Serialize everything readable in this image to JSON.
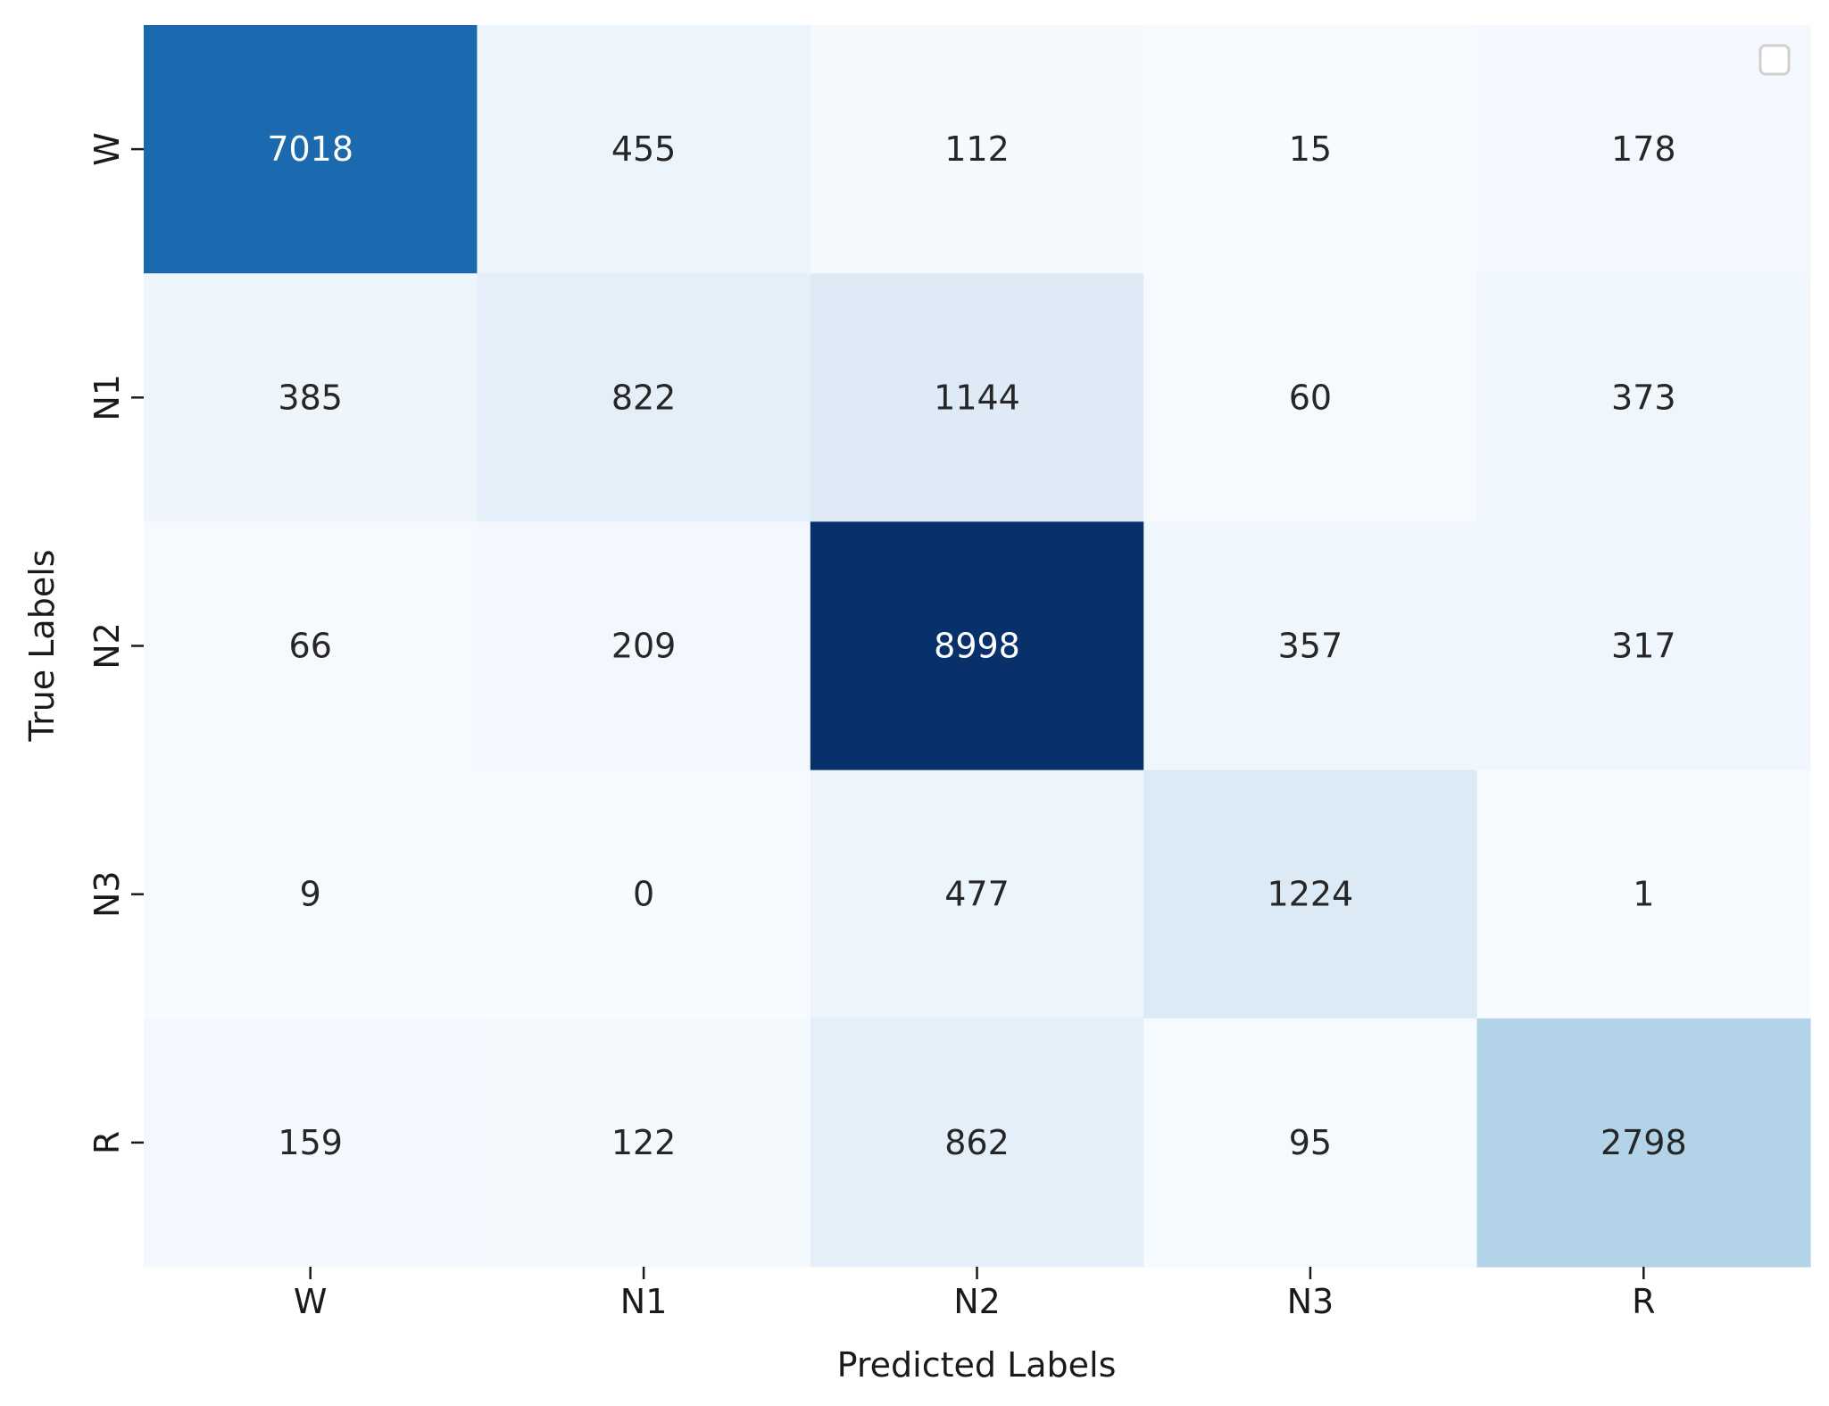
{
  "chart_data": {
    "type": "heatmap",
    "title": "",
    "xlabel": "Predicted Labels",
    "ylabel": "True Labels",
    "x_categories": [
      "W",
      "N1",
      "N2",
      "N3",
      "R"
    ],
    "y_categories": [
      "W",
      "N1",
      "N2",
      "N3",
      "R"
    ],
    "values": [
      [
        7018,
        455,
        112,
        15,
        178
      ],
      [
        385,
        822,
        1144,
        60,
        373
      ],
      [
        66,
        209,
        8998,
        357,
        317
      ],
      [
        9,
        0,
        477,
        1224,
        1
      ],
      [
        159,
        122,
        862,
        95,
        2798
      ]
    ],
    "value_range": [
      0,
      8998
    ],
    "colormap": "Blues",
    "colorbar": false,
    "legend": "empty box, top-right"
  }
}
